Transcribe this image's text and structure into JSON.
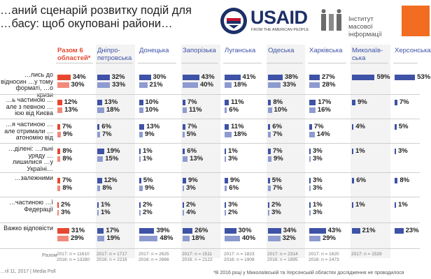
{
  "title": "…аний сценарій розвитку подій для …басу: щоб окуповані райони…",
  "logos": {
    "usaid": "USAID",
    "usaid_tagline": "FROM THE AMERICAN PEOPLE",
    "imi": "Інститут масової інформації"
  },
  "colors": {
    "first_col": "#e8472f",
    "first_col_light": "#f28a7a",
    "regions": "#3e52a6",
    "regions_light": "#8d9bd0"
  },
  "chart_data": {
    "type": "bar",
    "title": "…аний сценарій розвитку подій для …басу: щоб окуповані райони…",
    "years": [
      "2017",
      "2016"
    ],
    "categories": [
      {
        "label": "Разом 6 областей*",
        "n2017": "2017: n = 11610",
        "n2016": "2016: n = 13280"
      },
      {
        "label": "Дніпро-петровська",
        "n2017": "2017: n = 1717",
        "n2016": "2016: n = 2216"
      },
      {
        "label": "Донецька",
        "n2017": "2017: n = 2625",
        "n2016": "2016: n = 2666"
      },
      {
        "label": "Запорізька",
        "n2017": "2017: n = 1511",
        "n2016": "2016: n = 2122"
      },
      {
        "label": "Луганська",
        "n2017": "2017: n = 1823",
        "n2016": "2016: n = 1908"
      },
      {
        "label": "Одеська",
        "n2017": "2017: n = 2314",
        "n2016": "2016: n = 1895"
      },
      {
        "label": "Харківська",
        "n2017": "2017: n = 1620",
        "n2016": "2016: n = 2473"
      },
      {
        "label": "Миколаїв-ська",
        "n2017": "2017: n = 1529",
        "n2016": ""
      },
      {
        "label": "Херсонська",
        "n2017": "",
        "n2016": ""
      }
    ],
    "rows": [
      {
        "label": "…лись до відносин …у тому форматі, …о кризи",
        "v2017": [
          34,
          32,
          30,
          43,
          41,
          38,
          27,
          59,
          53
        ],
        "v2016": [
          30,
          33,
          21,
          40,
          18,
          33,
          28,
          null,
          null
        ]
      },
      {
        "label": "…ь частиною …але з певною …ією від Києва",
        "v2017": [
          12,
          13,
          10,
          7,
          11,
          8,
          17,
          9,
          7
        ],
        "v2016": [
          13,
          18,
          10,
          11,
          6,
          10,
          16,
          null,
          null
        ]
      },
      {
        "label": "…я частиною …але отримали …атономію від",
        "v2017": [
          7,
          6,
          13,
          7,
          11,
          6,
          7,
          4,
          5
        ],
        "v2016": [
          9,
          7,
          9,
          5,
          18,
          7,
          14,
          null,
          null
        ]
      },
      {
        "label": "…ділені: …льні уряду …лишилися …у Україні…",
        "v2017": [
          8,
          19,
          1,
          6,
          1,
          7,
          3,
          1,
          3
        ],
        "v2016": [
          8,
          15,
          1,
          13,
          3,
          9,
          3,
          null,
          null
        ]
      },
      {
        "label": "…залежними",
        "v2017": [
          7,
          12,
          5,
          9,
          9,
          5,
          3,
          6,
          8
        ],
        "v2016": [
          8,
          8,
          9,
          3,
          6,
          7,
          3,
          null,
          null
        ]
      },
      {
        "label": "…частиною …ї Федерації",
        "v2017": [
          2,
          1,
          2,
          2,
          3,
          2,
          1,
          1,
          1
        ],
        "v2016": [
          3,
          1,
          2,
          4,
          2,
          3,
          3,
          null,
          null
        ]
      },
      {
        "label": "Важко відповісти",
        "v2017": [
          31,
          17,
          39,
          26,
          30,
          34,
          43,
          21,
          23
        ],
        "v2016": [
          29,
          19,
          48,
          18,
          40,
          32,
          29,
          null,
          null
        ]
      }
    ],
    "n_label": "Разом"
  },
  "footer": "…ril 11, 2017 | Media Poll",
  "footnote": "*В 2016 році у Миколаївській та Херсонській областях дослідження не проводилося"
}
